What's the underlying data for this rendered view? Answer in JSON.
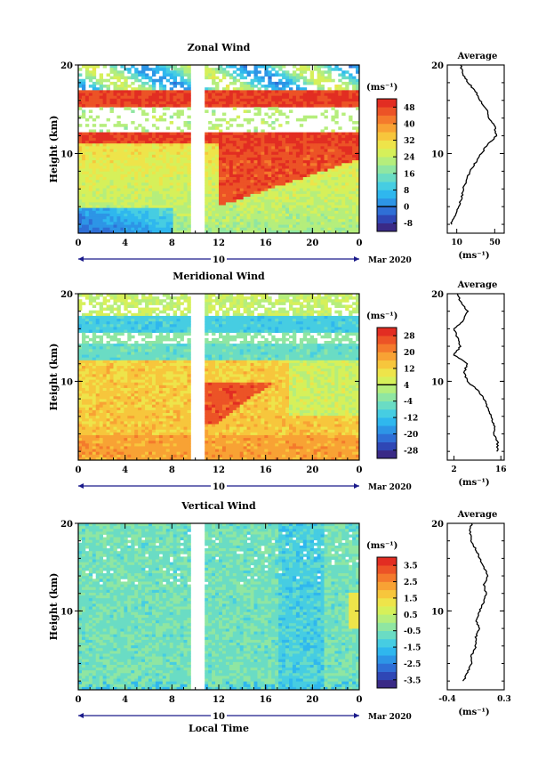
{
  "figure": {
    "x_axis_title": "Local Time",
    "date_label": "Mar 2020",
    "day_label": "10",
    "x_ticks": [
      "0",
      "4",
      "8",
      "12",
      "16",
      "20",
      "0"
    ],
    "average_title": "Average",
    "unit_label": "(ms⁻¹)",
    "cmap": [
      "#3a2a86",
      "#2f47b5",
      "#2f6fd6",
      "#2d95e6",
      "#2fb7ee",
      "#46cde2",
      "#6adcc4",
      "#8fe6a2",
      "#b5ee7c",
      "#d6f05a",
      "#eee44a",
      "#f7c63c",
      "#f8a234",
      "#f47a2c",
      "#ec5326",
      "#e22d22"
    ]
  },
  "chart_data": [
    {
      "type": "heatmap",
      "title": "Zonal Wind",
      "ylabel": "Height (km)",
      "y_ticks": [
        "20",
        "10"
      ],
      "ylim": [
        1,
        20
      ],
      "xlim": [
        0,
        24
      ],
      "colorbar": {
        "ticks": [
          "48",
          "40",
          "32",
          "24",
          "16",
          "8",
          "0",
          "-8"
        ],
        "range": [
          -12,
          52
        ]
      },
      "profile": {
        "x_ticks": [
          "10",
          "50"
        ],
        "xlim": [
          0,
          60
        ],
        "points": [
          [
            4,
            2
          ],
          [
            8,
            3
          ],
          [
            12,
            4
          ],
          [
            15,
            5
          ],
          [
            17,
            6
          ],
          [
            20,
            7
          ],
          [
            24,
            8
          ],
          [
            30,
            9
          ],
          [
            36,
            10
          ],
          [
            42,
            11
          ],
          [
            52,
            12
          ],
          [
            50,
            13
          ],
          [
            44,
            14
          ],
          [
            42,
            15
          ],
          [
            34,
            16
          ],
          [
            30,
            17
          ],
          [
            22,
            18
          ],
          [
            16,
            19
          ],
          [
            14,
            20
          ]
        ]
      }
    },
    {
      "type": "heatmap",
      "title": "Meridional Wind",
      "ylabel": "Height (km)",
      "y_ticks": [
        "20",
        "10"
      ],
      "ylim": [
        1,
        20
      ],
      "xlim": [
        0,
        24
      ],
      "colorbar": {
        "ticks": [
          "28",
          "20",
          "12",
          "4",
          "-4",
          "-12",
          "-20",
          "-28"
        ],
        "range": [
          -32,
          32
        ]
      },
      "profile": {
        "x_ticks": [
          "2",
          "16"
        ],
        "xlim": [
          0,
          17
        ],
        "points": [
          [
            15,
            2
          ],
          [
            15,
            3
          ],
          [
            14,
            4
          ],
          [
            14,
            5
          ],
          [
            13,
            6
          ],
          [
            12,
            7
          ],
          [
            11,
            8
          ],
          [
            9,
            9
          ],
          [
            6,
            10
          ],
          [
            5,
            11
          ],
          [
            6,
            12
          ],
          [
            2,
            13
          ],
          [
            4,
            14
          ],
          [
            3,
            15
          ],
          [
            2,
            16
          ],
          [
            5,
            17
          ],
          [
            6,
            18
          ],
          [
            4,
            19
          ],
          [
            3,
            20
          ]
        ]
      }
    },
    {
      "type": "heatmap",
      "title": "Vertical Wind",
      "ylabel": "Height (km)",
      "y_ticks": [
        "20",
        "10"
      ],
      "ylim": [
        1,
        20
      ],
      "xlim": [
        0,
        24
      ],
      "colorbar": {
        "ticks": [
          "3.5",
          "2.5",
          "1.5",
          "0.5",
          "-0.5",
          "-1.5",
          "-2.5",
          "-3.5"
        ],
        "range": [
          -4,
          4
        ]
      },
      "profile": {
        "x_ticks": [
          "-0.4",
          "0.3"
        ],
        "xlim": [
          -0.4,
          0.3
        ],
        "points": [
          [
            -0.2,
            2
          ],
          [
            -0.15,
            3
          ],
          [
            -0.1,
            4
          ],
          [
            -0.1,
            5
          ],
          [
            -0.05,
            6
          ],
          [
            -0.05,
            7
          ],
          [
            0.0,
            8
          ],
          [
            -0.05,
            9
          ],
          [
            0.0,
            10
          ],
          [
            0.05,
            11
          ],
          [
            0.08,
            12
          ],
          [
            0.05,
            13
          ],
          [
            0.1,
            14
          ],
          [
            0.05,
            15
          ],
          [
            0.0,
            16
          ],
          [
            -0.05,
            17
          ],
          [
            -0.1,
            18
          ],
          [
            -0.12,
            19
          ],
          [
            -0.1,
            20
          ]
        ]
      }
    }
  ]
}
